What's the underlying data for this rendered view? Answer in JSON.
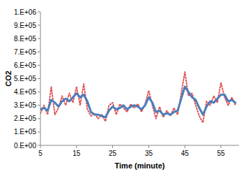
{
  "chart_data": {
    "type": "line",
    "x_label": "Time (minute)",
    "y_label": "CO2",
    "xlim": [
      5,
      60
    ],
    "xticks": [
      5,
      15,
      25,
      35,
      45,
      55
    ],
    "ylim": [
      0,
      1000000
    ],
    "yticks": [
      {
        "value": 0,
        "label": "0.E+00"
      },
      {
        "value": 100000,
        "label": "1.E+05"
      },
      {
        "value": 200000,
        "label": "2.E+05"
      },
      {
        "value": 300000,
        "label": "3.E+05"
      },
      {
        "value": 400000,
        "label": "4.E+05"
      },
      {
        "value": 500000,
        "label": "5.E+05"
      },
      {
        "value": 600000,
        "label": "6.E+05"
      },
      {
        "value": 700000,
        "label": "7.E+05"
      },
      {
        "value": 800000,
        "label": "8.E+05"
      },
      {
        "value": 900000,
        "label": "9.E+05"
      },
      {
        "value": 1000000,
        "label": "1.E+06"
      }
    ],
    "grid": false,
    "x": [
      5,
      6,
      7,
      8,
      9,
      10,
      11,
      12,
      13,
      14,
      15,
      16,
      17,
      18,
      19,
      20,
      21,
      22,
      23,
      24,
      25,
      26,
      27,
      28,
      29,
      30,
      31,
      32,
      33,
      34,
      35,
      36,
      37,
      38,
      39,
      40,
      41,
      42,
      43,
      44,
      45,
      46,
      47,
      48,
      49,
      50,
      51,
      52,
      53,
      54,
      55,
      56,
      57,
      58,
      59
    ],
    "series": [
      {
        "color": "#e05050",
        "line_style": "dotted",
        "values": [
          240000,
          300000,
          230000,
          440000,
          230000,
          280000,
          370000,
          300000,
          390000,
          320000,
          440000,
          300000,
          460000,
          270000,
          220000,
          240000,
          200000,
          230000,
          180000,
          300000,
          320000,
          230000,
          310000,
          280000,
          250000,
          310000,
          280000,
          310000,
          250000,
          310000,
          410000,
          300000,
          200000,
          290000,
          210000,
          260000,
          220000,
          280000,
          230000,
          390000,
          550000,
          370000,
          390000,
          300000,
          220000,
          170000,
          330000,
          300000,
          370000,
          320000,
          470000,
          360000,
          300000,
          360000,
          300000
        ]
      },
      {
        "color": "#4a7ebb",
        "line_style": "solid",
        "values": [
          270000,
          280000,
          260000,
          340000,
          320000,
          290000,
          330000,
          350000,
          330000,
          360000,
          390000,
          360000,
          380000,
          330000,
          250000,
          230000,
          230000,
          220000,
          210000,
          260000,
          290000,
          270000,
          280000,
          300000,
          270000,
          290000,
          300000,
          290000,
          270000,
          300000,
          360000,
          320000,
          250000,
          260000,
          230000,
          240000,
          230000,
          250000,
          260000,
          350000,
          440000,
          400000,
          360000,
          340000,
          280000,
          230000,
          290000,
          330000,
          320000,
          350000,
          380000,
          380000,
          330000,
          340000,
          320000
        ]
      }
    ]
  }
}
